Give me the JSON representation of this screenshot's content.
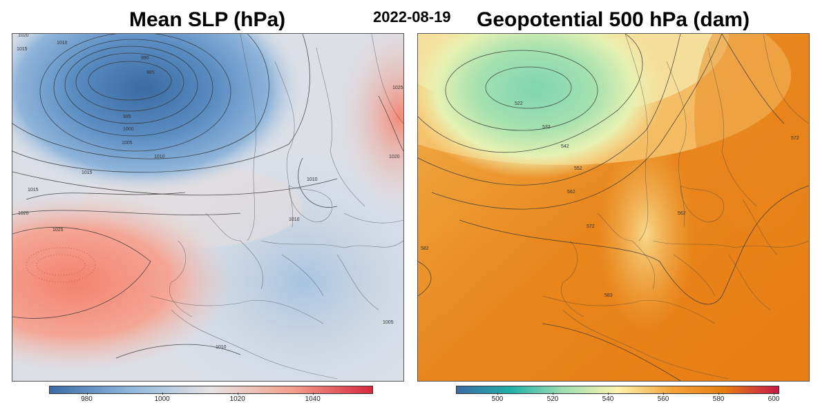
{
  "header": {
    "date": "2022-08-19"
  },
  "left_map": {
    "title": "Mean SLP (hPa)",
    "colorbar": {
      "ticks": [
        "980",
        "1000",
        "1020",
        "1040"
      ],
      "range": [
        970,
        1056
      ],
      "tick_values": [
        980,
        1000,
        1020,
        1040
      ],
      "colors": [
        "#3a6ba6",
        "#8fb7db",
        "#e6e3e4",
        "#f4a08d",
        "#d7263d"
      ]
    },
    "contour_labels": [
      "1020",
      "1015",
      "1010",
      "990",
      "985",
      "995",
      "1000",
      "1005",
      "1010",
      "1015",
      "1015",
      "1020",
      "1025",
      "1010",
      "1010",
      "1010",
      "1005",
      "1025",
      "1020"
    ],
    "low_center_value": "985",
    "high_center_value": "1025"
  },
  "right_map": {
    "title": "Geopotential 500 hPa (dam)",
    "colorbar": {
      "ticks": [
        "500",
        "520",
        "540",
        "560",
        "580",
        "600"
      ],
      "range": [
        485,
        602
      ],
      "tick_values": [
        500,
        520,
        540,
        560,
        580,
        600
      ],
      "colors": [
        "#3a6ba6",
        "#1fb0a8",
        "#9fdfb0",
        "#fdf3ae",
        "#f5a43a",
        "#e77d10",
        "#c8184a"
      ]
    },
    "contour_labels": [
      "522",
      "532",
      "542",
      "552",
      "562",
      "572",
      "562",
      "572",
      "582",
      "583"
    ],
    "low_center_value": "522"
  }
}
